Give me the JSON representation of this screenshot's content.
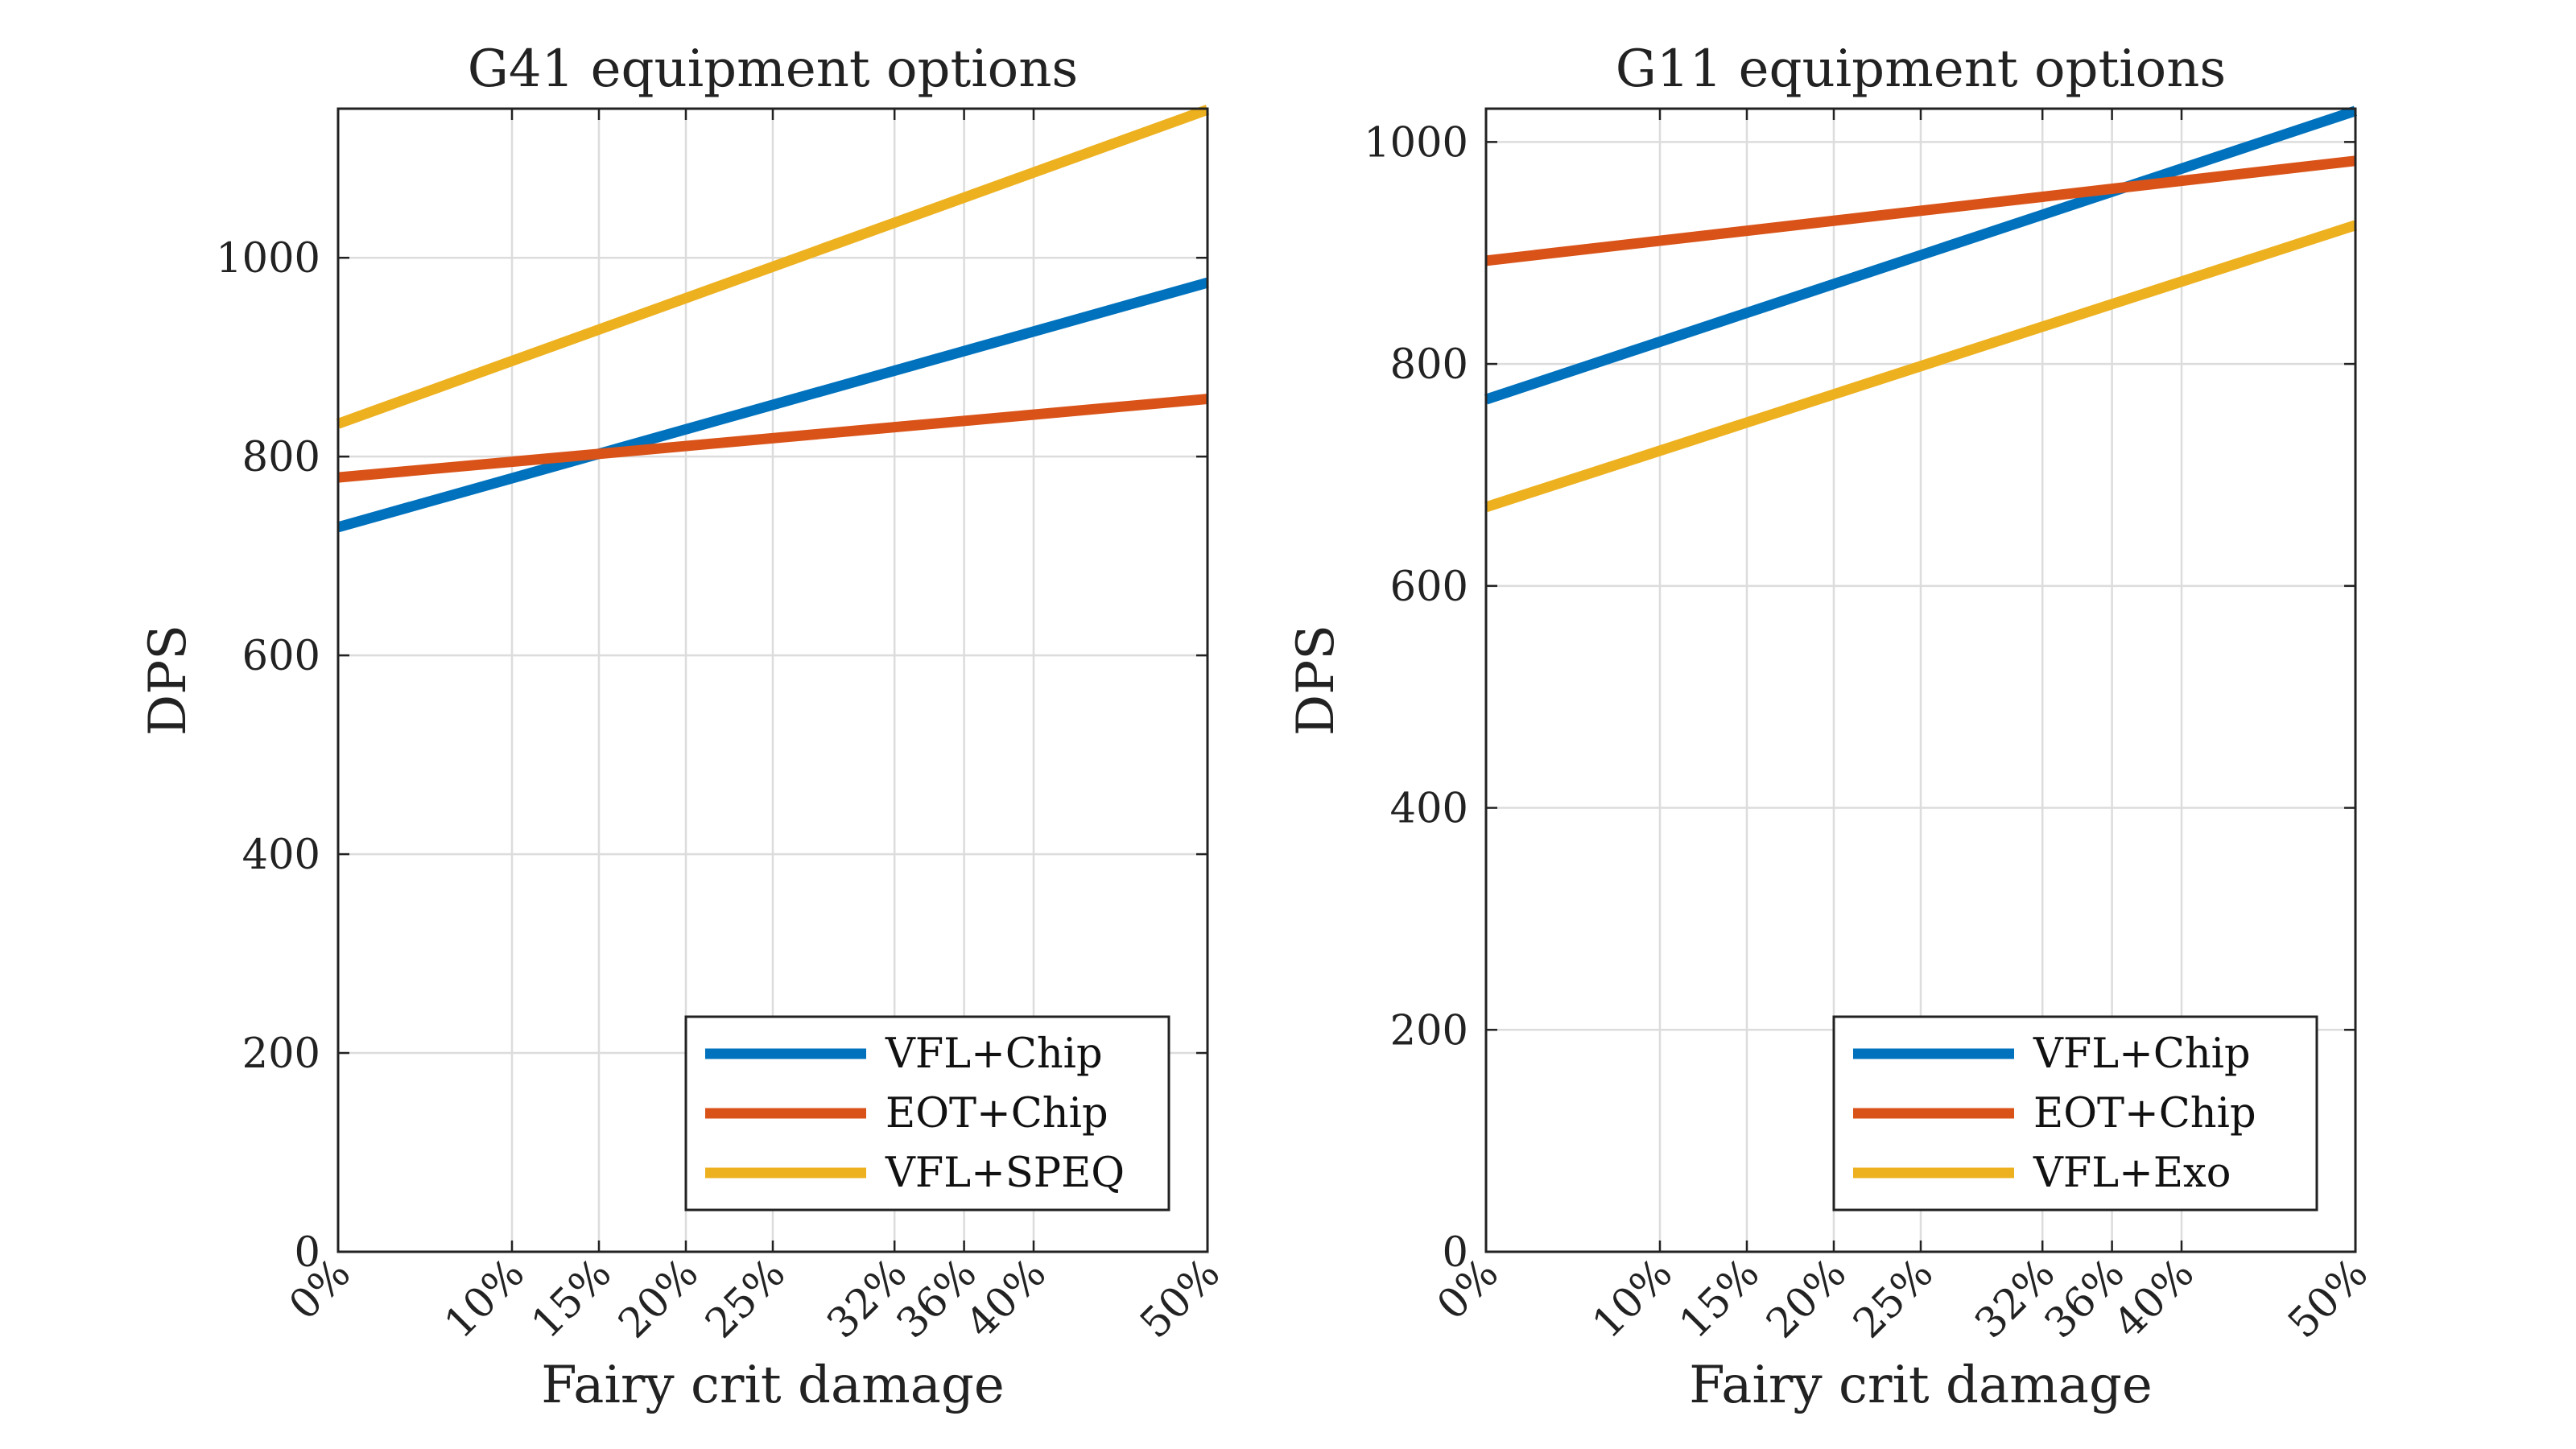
{
  "chart_data": [
    {
      "type": "line",
      "title": "G41 equipment options",
      "xlabel": "Fairy crit damage",
      "ylabel": "DPS",
      "x": [
        0,
        10,
        15,
        20,
        25,
        32,
        36,
        40,
        50
      ],
      "x_tick_labels": [
        "0%",
        "10%",
        "15%",
        "20%",
        "25%",
        "32%",
        "36%",
        "40%",
        "50%"
      ],
      "xlim": [
        0,
        50
      ],
      "ylim": [
        0,
        1150
      ],
      "y_ticks": [
        0,
        200,
        400,
        600,
        800,
        1000
      ],
      "grid": true,
      "legend_position": "bottom-right",
      "series": [
        {
          "name": "VFL+Chip",
          "color": "#0072BD",
          "x": [
            0,
            50
          ],
          "values": [
            729,
            975
          ]
        },
        {
          "name": "EOT+Chip",
          "color": "#D95319",
          "x": [
            0,
            50
          ],
          "values": [
            779,
            858
          ]
        },
        {
          "name": "VFL+SPEQ",
          "color": "#EDB120",
          "x": [
            0,
            50
          ],
          "values": [
            833,
            1149
          ]
        }
      ]
    },
    {
      "type": "line",
      "title": "G11 equipment options",
      "xlabel": "Fairy crit damage",
      "ylabel": "DPS",
      "x": [
        0,
        10,
        15,
        20,
        25,
        32,
        36,
        40,
        50
      ],
      "x_tick_labels": [
        "0%",
        "10%",
        "15%",
        "20%",
        "25%",
        "32%",
        "36%",
        "40%",
        "50%"
      ],
      "xlim": [
        0,
        50
      ],
      "ylim": [
        0,
        1030
      ],
      "y_ticks": [
        0,
        200,
        400,
        600,
        800,
        1000
      ],
      "grid": true,
      "legend_position": "bottom-right",
      "series": [
        {
          "name": "VFL+Chip",
          "color": "#0072BD",
          "x": [
            0,
            50
          ],
          "values": [
            768,
            1028
          ]
        },
        {
          "name": "EOT+Chip",
          "color": "#D95319",
          "x": [
            0,
            50
          ],
          "values": [
            893,
            983
          ]
        },
        {
          "name": "VFL+Exo",
          "color": "#EDB120",
          "x": [
            0,
            50
          ],
          "values": [
            671,
            925
          ]
        }
      ]
    }
  ]
}
